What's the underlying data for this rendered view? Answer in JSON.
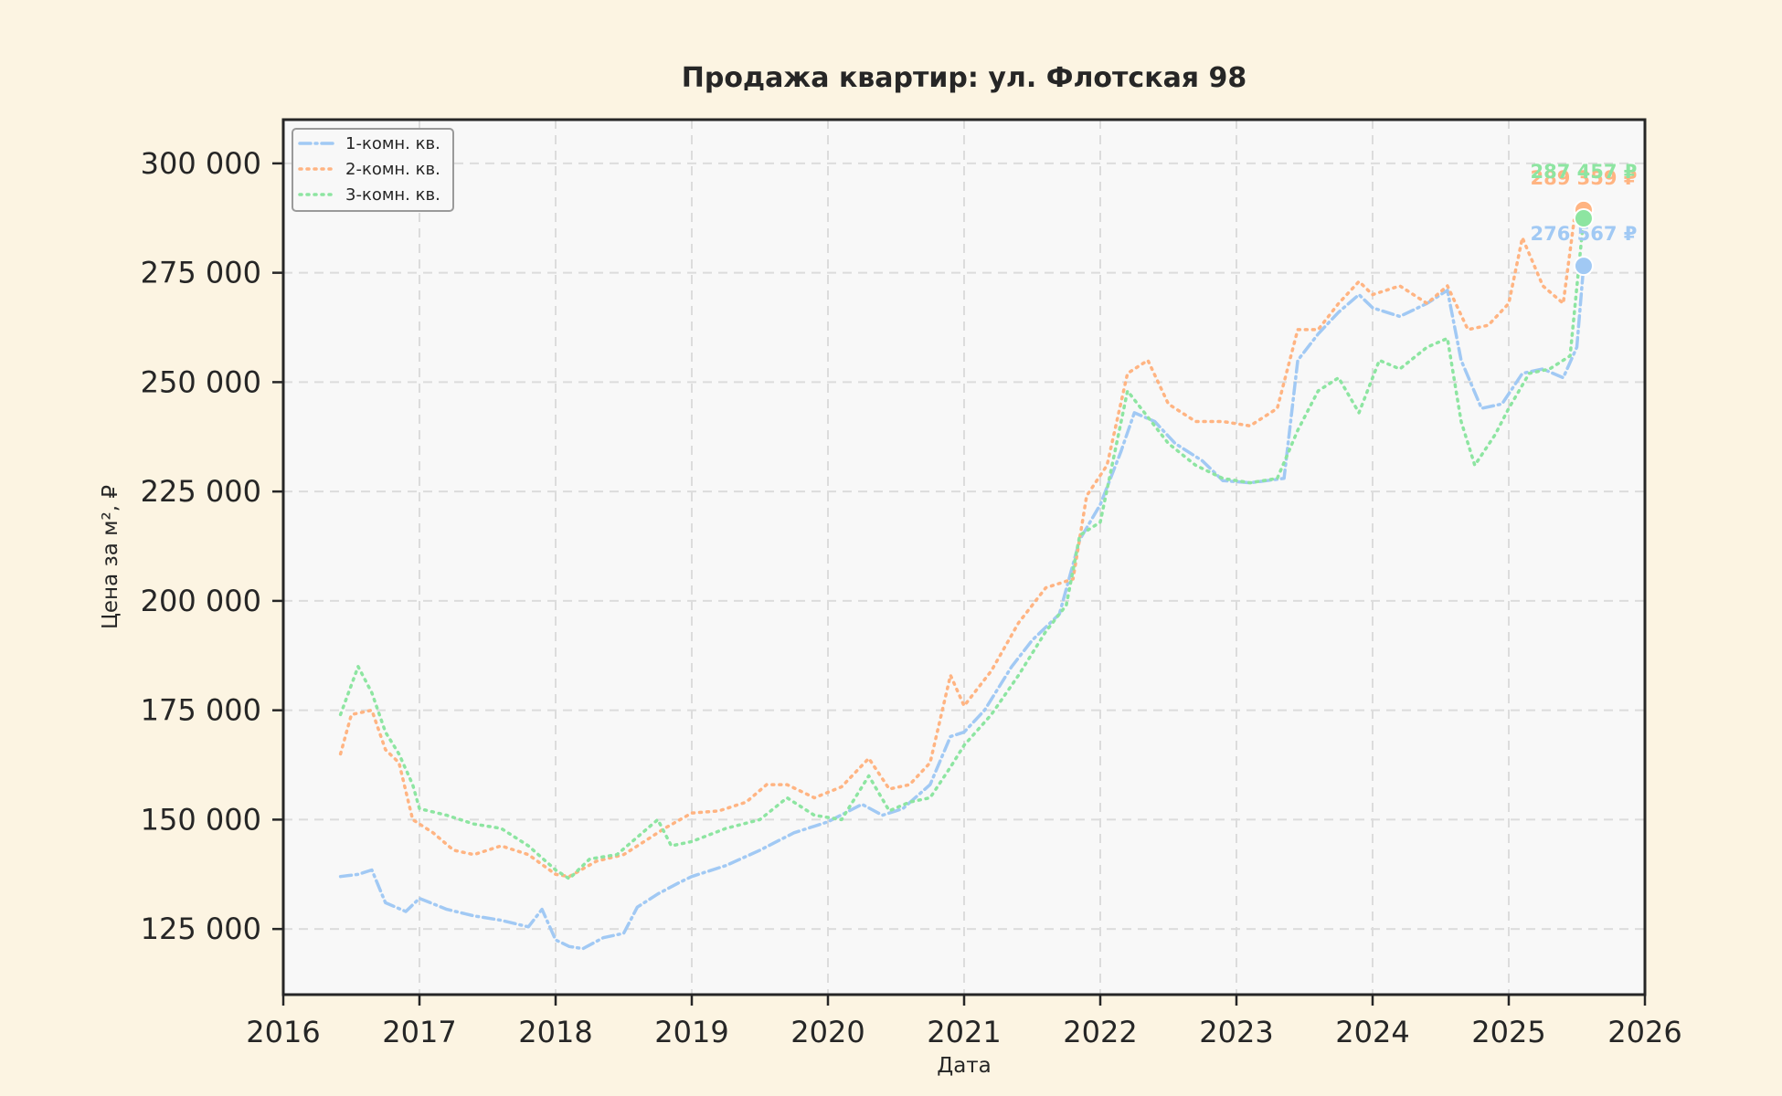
{
  "chart_data": {
    "type": "line",
    "title": "Продажа квартир: ул. Флотская 98",
    "xlabel": "Дата",
    "ylabel": "Цена за м², ₽",
    "xlim": [
      2016,
      2026
    ],
    "ylim": [
      110000,
      310000
    ],
    "x_ticks": [
      2016,
      2017,
      2018,
      2019,
      2020,
      2021,
      2022,
      2023,
      2024,
      2025,
      2026
    ],
    "x_tick_labels": [
      "2016",
      "2017",
      "2018",
      "2019",
      "2020",
      "2021",
      "2022",
      "2023",
      "2024",
      "2025",
      "2026"
    ],
    "y_ticks": [
      125000,
      150000,
      175000,
      200000,
      225000,
      250000,
      275000,
      300000
    ],
    "y_tick_labels": [
      "125 000",
      "150 000",
      "175 000",
      "200 000",
      "225 000",
      "250 000",
      "275 000",
      "300 000"
    ],
    "grid": true,
    "legend_position": "top-left",
    "series": [
      {
        "name": "1-комн. кв.",
        "color": "#a1c9f4",
        "dash": "dashdot",
        "end_label": "276 567 ₽",
        "end_value": 276567,
        "points": [
          [
            2016.42,
            137000
          ],
          [
            2016.55,
            137500
          ],
          [
            2016.65,
            138500
          ],
          [
            2016.75,
            131000
          ],
          [
            2016.9,
            129000
          ],
          [
            2017.0,
            132000
          ],
          [
            2017.2,
            129500
          ],
          [
            2017.4,
            128000
          ],
          [
            2017.6,
            127000
          ],
          [
            2017.8,
            125500
          ],
          [
            2017.9,
            129500
          ],
          [
            2018.0,
            122500
          ],
          [
            2018.1,
            121000
          ],
          [
            2018.2,
            120500
          ],
          [
            2018.35,
            123000
          ],
          [
            2018.5,
            124000
          ],
          [
            2018.6,
            130000
          ],
          [
            2018.75,
            133000
          ],
          [
            2018.9,
            135500
          ],
          [
            2019.0,
            137000
          ],
          [
            2019.25,
            139500
          ],
          [
            2019.5,
            143000
          ],
          [
            2019.75,
            147000
          ],
          [
            2020.0,
            149500
          ],
          [
            2020.25,
            153500
          ],
          [
            2020.4,
            151000
          ],
          [
            2020.55,
            152500
          ],
          [
            2020.75,
            158000
          ],
          [
            2020.9,
            169000
          ],
          [
            2021.0,
            170000
          ],
          [
            2021.15,
            175000
          ],
          [
            2021.35,
            185000
          ],
          [
            2021.5,
            191000
          ],
          [
            2021.7,
            197000
          ],
          [
            2021.85,
            214000
          ],
          [
            2022.0,
            222000
          ],
          [
            2022.15,
            234000
          ],
          [
            2022.25,
            243000
          ],
          [
            2022.4,
            241000
          ],
          [
            2022.55,
            236000
          ],
          [
            2022.75,
            232000
          ],
          [
            2022.9,
            227500
          ],
          [
            2023.1,
            227000
          ],
          [
            2023.35,
            228000
          ],
          [
            2023.45,
            255000
          ],
          [
            2023.6,
            261000
          ],
          [
            2023.75,
            266000
          ],
          [
            2023.9,
            270000
          ],
          [
            2024.0,
            267000
          ],
          [
            2024.2,
            265000
          ],
          [
            2024.4,
            268000
          ],
          [
            2024.55,
            271000
          ],
          [
            2024.65,
            255000
          ],
          [
            2024.8,
            244000
          ],
          [
            2024.95,
            245000
          ],
          [
            2025.1,
            252000
          ],
          [
            2025.25,
            253000
          ],
          [
            2025.4,
            251000
          ],
          [
            2025.5,
            258000
          ],
          [
            2025.55,
            276567
          ]
        ]
      },
      {
        "name": "2-комн. кв.",
        "color": "#ffb482",
        "dash": "dot",
        "end_label": "289 359 ₽",
        "end_value": 289359,
        "points": [
          [
            2016.42,
            165000
          ],
          [
            2016.5,
            174000
          ],
          [
            2016.65,
            175000
          ],
          [
            2016.75,
            166000
          ],
          [
            2016.85,
            163000
          ],
          [
            2016.95,
            150000
          ],
          [
            2017.1,
            147000
          ],
          [
            2017.25,
            143000
          ],
          [
            2017.4,
            142000
          ],
          [
            2017.6,
            144000
          ],
          [
            2017.8,
            142000
          ],
          [
            2018.0,
            137500
          ],
          [
            2018.1,
            137000
          ],
          [
            2018.3,
            140500
          ],
          [
            2018.5,
            142000
          ],
          [
            2018.65,
            145000
          ],
          [
            2018.8,
            148000
          ],
          [
            2019.0,
            151500
          ],
          [
            2019.2,
            152000
          ],
          [
            2019.4,
            154000
          ],
          [
            2019.55,
            158000
          ],
          [
            2019.7,
            158000
          ],
          [
            2019.9,
            155000
          ],
          [
            2020.1,
            157500
          ],
          [
            2020.3,
            164000
          ],
          [
            2020.45,
            157000
          ],
          [
            2020.6,
            158000
          ],
          [
            2020.75,
            163000
          ],
          [
            2020.9,
            183000
          ],
          [
            2021.0,
            176000
          ],
          [
            2021.2,
            184000
          ],
          [
            2021.4,
            195000
          ],
          [
            2021.6,
            203000
          ],
          [
            2021.8,
            205000
          ],
          [
            2021.9,
            224000
          ],
          [
            2022.05,
            231000
          ],
          [
            2022.2,
            252000
          ],
          [
            2022.35,
            255000
          ],
          [
            2022.5,
            245000
          ],
          [
            2022.7,
            241000
          ],
          [
            2022.9,
            241000
          ],
          [
            2023.1,
            240000
          ],
          [
            2023.3,
            244000
          ],
          [
            2023.45,
            262000
          ],
          [
            2023.6,
            262000
          ],
          [
            2023.75,
            268000
          ],
          [
            2023.9,
            273000
          ],
          [
            2024.0,
            270000
          ],
          [
            2024.2,
            272000
          ],
          [
            2024.4,
            268000
          ],
          [
            2024.55,
            272000
          ],
          [
            2024.7,
            262000
          ],
          [
            2024.85,
            263000
          ],
          [
            2025.0,
            268000
          ],
          [
            2025.1,
            283000
          ],
          [
            2025.25,
            272000
          ],
          [
            2025.4,
            268000
          ],
          [
            2025.48,
            287000
          ],
          [
            2025.55,
            289359
          ]
        ]
      },
      {
        "name": "3-комн. кв.",
        "color": "#8de5a1",
        "dash": "dot",
        "end_label": "287 457 ₽",
        "end_value": 287457,
        "points": [
          [
            2016.42,
            174000
          ],
          [
            2016.55,
            185000
          ],
          [
            2016.65,
            179000
          ],
          [
            2016.75,
            170000
          ],
          [
            2016.85,
            165000
          ],
          [
            2016.95,
            158000
          ],
          [
            2017.0,
            152500
          ],
          [
            2017.2,
            151000
          ],
          [
            2017.4,
            149000
          ],
          [
            2017.6,
            148000
          ],
          [
            2017.8,
            144000
          ],
          [
            2018.0,
            138500
          ],
          [
            2018.1,
            136500
          ],
          [
            2018.25,
            141000
          ],
          [
            2018.45,
            142000
          ],
          [
            2018.6,
            146000
          ],
          [
            2018.75,
            150000
          ],
          [
            2018.85,
            144000
          ],
          [
            2019.0,
            145000
          ],
          [
            2019.25,
            148000
          ],
          [
            2019.5,
            150000
          ],
          [
            2019.7,
            155000
          ],
          [
            2019.9,
            151000
          ],
          [
            2020.1,
            150000
          ],
          [
            2020.3,
            160000
          ],
          [
            2020.45,
            152000
          ],
          [
            2020.6,
            154000
          ],
          [
            2020.75,
            155000
          ],
          [
            2020.9,
            162000
          ],
          [
            2021.0,
            167000
          ],
          [
            2021.2,
            174000
          ],
          [
            2021.4,
            183000
          ],
          [
            2021.6,
            193000
          ],
          [
            2021.75,
            199000
          ],
          [
            2021.85,
            215000
          ],
          [
            2022.0,
            218000
          ],
          [
            2022.2,
            248000
          ],
          [
            2022.35,
            242000
          ],
          [
            2022.5,
            236000
          ],
          [
            2022.7,
            231000
          ],
          [
            2022.9,
            228000
          ],
          [
            2023.1,
            227000
          ],
          [
            2023.3,
            228000
          ],
          [
            2023.45,
            239000
          ],
          [
            2023.6,
            248000
          ],
          [
            2023.75,
            251000
          ],
          [
            2023.9,
            243000
          ],
          [
            2024.05,
            255000
          ],
          [
            2024.2,
            253000
          ],
          [
            2024.4,
            258000
          ],
          [
            2024.55,
            260000
          ],
          [
            2024.65,
            241000
          ],
          [
            2024.75,
            231000
          ],
          [
            2024.9,
            238000
          ],
          [
            2025.0,
            244000
          ],
          [
            2025.15,
            252000
          ],
          [
            2025.3,
            253000
          ],
          [
            2025.45,
            256000
          ],
          [
            2025.55,
            287457
          ]
        ]
      }
    ]
  }
}
